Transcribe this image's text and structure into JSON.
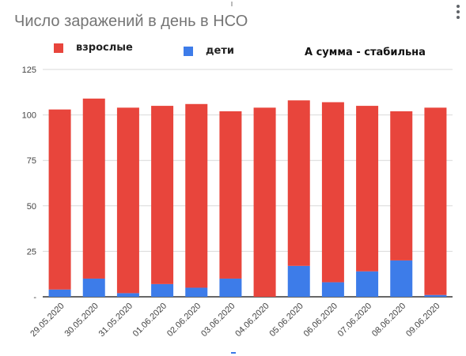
{
  "chart_data": {
    "type": "bar",
    "stacked": true,
    "title": "Число заражений в день в НСО",
    "annotation": "А сумма - стабильна",
    "categories": [
      "29.05.2020",
      "30.05.2020",
      "31.05.2020",
      "01.06.2020",
      "02.06.2020",
      "03.06.2020",
      "04.06.2020",
      "05.06.2020",
      "06.06.2020",
      "07.06.2020",
      "08.06.2020",
      "09.06.2020"
    ],
    "series": [
      {
        "name": "взрослые",
        "color": "#e8453c",
        "values": [
          99,
          99,
          102,
          98,
          101,
          92,
          104,
          91,
          99,
          91,
          82,
          103
        ]
      },
      {
        "name": "дети",
        "color": "#3d7ce9",
        "values": [
          4,
          10,
          2,
          7,
          5,
          10,
          0,
          17,
          8,
          14,
          20,
          1
        ]
      }
    ],
    "yticks": [
      0,
      25,
      50,
      75,
      100,
      125
    ],
    "ytick_labels": [
      "-",
      "25",
      "50",
      "75",
      "100",
      "125"
    ],
    "ylim": [
      0,
      125
    ],
    "grid": true,
    "legend": "top-left",
    "xlabel": "",
    "ylabel": ""
  }
}
